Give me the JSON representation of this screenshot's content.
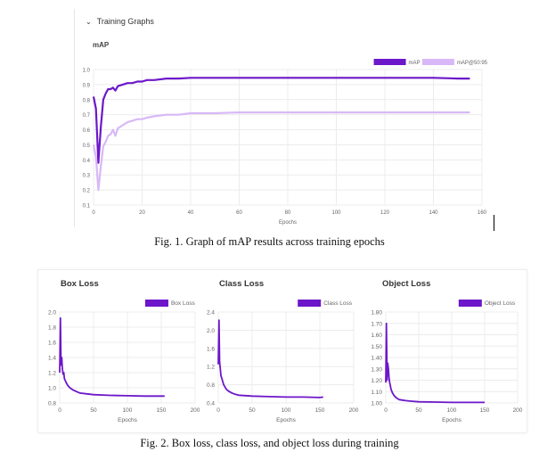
{
  "top": {
    "section_label": "Training Graphs",
    "chart_title": "mAP"
  },
  "captions": {
    "fig1": "Fig. 1. Graph of mAP results across training epochs",
    "fig2": "Fig. 2. Box loss, class loss, and object loss during training"
  },
  "colors": {
    "dark": "#6c17c9",
    "light": "#d8b8f6",
    "grid": "#ececec",
    "axis_text": "#666666"
  },
  "chart_data": [
    {
      "id": "map",
      "type": "line",
      "title": "mAP",
      "xlabel": "Epochs",
      "ylabel": "",
      "xlim": [
        0,
        160
      ],
      "ylim": [
        0.1,
        1.0
      ],
      "xticks": [
        0,
        20,
        40,
        60,
        80,
        100,
        120,
        140,
        160
      ],
      "yticks": [
        0.1,
        0.2,
        0.3,
        0.4,
        0.5,
        0.6,
        0.7,
        0.8,
        0.9,
        1.0
      ],
      "ytick_labels": [
        "0.1",
        "0.2",
        "0.3",
        "0.4",
        "0.5",
        "0.6",
        "0.7",
        "0.8",
        "0.9",
        "1.0"
      ],
      "legend_position": "top-right",
      "series": [
        {
          "name": "mAP",
          "color": "#6c17c9",
          "x": [
            0,
            1,
            2,
            3,
            4,
            5,
            6,
            7,
            8,
            9,
            10,
            12,
            14,
            16,
            18,
            20,
            22,
            25,
            30,
            35,
            40,
            50,
            60,
            80,
            100,
            120,
            140,
            150,
            155
          ],
          "y": [
            0.82,
            0.74,
            0.38,
            0.62,
            0.8,
            0.84,
            0.87,
            0.87,
            0.88,
            0.86,
            0.89,
            0.9,
            0.91,
            0.91,
            0.92,
            0.92,
            0.93,
            0.93,
            0.94,
            0.94,
            0.945,
            0.945,
            0.945,
            0.945,
            0.945,
            0.945,
            0.945,
            0.94,
            0.94
          ]
        },
        {
          "name": "mAP@50:95",
          "color": "#d8b8f6",
          "x": [
            0,
            1,
            2,
            3,
            4,
            5,
            6,
            7,
            8,
            9,
            10,
            12,
            14,
            16,
            18,
            20,
            22,
            25,
            30,
            35,
            40,
            50,
            60,
            80,
            100,
            120,
            140,
            150,
            155
          ],
          "y": [
            0.5,
            0.42,
            0.2,
            0.36,
            0.49,
            0.52,
            0.56,
            0.57,
            0.6,
            0.56,
            0.61,
            0.63,
            0.65,
            0.66,
            0.67,
            0.67,
            0.68,
            0.69,
            0.7,
            0.7,
            0.71,
            0.71,
            0.715,
            0.715,
            0.715,
            0.715,
            0.715,
            0.715,
            0.715
          ]
        }
      ]
    },
    {
      "id": "box",
      "type": "line",
      "title": "Box Loss",
      "xlabel": "Epochs",
      "ylabel": "",
      "xlim": [
        0,
        200
      ],
      "ylim": [
        0.8,
        2.0
      ],
      "xticks": [
        0,
        50,
        100,
        150,
        200
      ],
      "yticks": [
        0.8,
        1.0,
        1.2,
        1.4,
        1.6,
        1.8,
        2.0
      ],
      "ytick_labels": [
        "0.8",
        "1.0",
        "1.2",
        "1.4",
        "1.6",
        "1.8",
        "2.0"
      ],
      "legend_position": "top-right",
      "series": [
        {
          "name": "Box Loss",
          "color": "#6c17c9",
          "x": [
            0,
            1,
            2,
            3,
            4,
            5,
            6,
            7,
            8,
            10,
            12,
            15,
            20,
            25,
            30,
            40,
            50,
            75,
            100,
            125,
            150,
            155
          ],
          "y": [
            1.2,
            1.92,
            1.3,
            1.4,
            1.25,
            1.18,
            1.2,
            1.12,
            1.1,
            1.06,
            1.03,
            1.0,
            0.97,
            0.95,
            0.93,
            0.92,
            0.91,
            0.9,
            0.895,
            0.89,
            0.89,
            0.89
          ]
        }
      ]
    },
    {
      "id": "class",
      "type": "line",
      "title": "Class Loss",
      "xlabel": "Epochs",
      "ylabel": "",
      "xlim": [
        0,
        200
      ],
      "ylim": [
        0.4,
        2.4
      ],
      "xticks": [
        0,
        50,
        100,
        150,
        200
      ],
      "yticks": [
        0.4,
        0.8,
        1.2,
        1.6,
        2.0,
        2.4
      ],
      "ytick_labels": [
        "0.4",
        "0.8",
        "1.2",
        "1.6",
        "2.0",
        "2.4"
      ],
      "legend_position": "top-right",
      "series": [
        {
          "name": "Class Loss",
          "color": "#6c17c9",
          "x": [
            0,
            1,
            2,
            3,
            4,
            5,
            6,
            7,
            8,
            10,
            12,
            15,
            20,
            25,
            30,
            40,
            50,
            75,
            100,
            125,
            150,
            155
          ],
          "y": [
            1.25,
            2.22,
            1.3,
            1.15,
            1.0,
            0.95,
            0.9,
            0.85,
            0.8,
            0.75,
            0.7,
            0.66,
            0.62,
            0.59,
            0.57,
            0.56,
            0.55,
            0.54,
            0.53,
            0.53,
            0.52,
            0.53
          ]
        }
      ]
    },
    {
      "id": "object",
      "type": "line",
      "title": "Object Loss",
      "xlabel": "Epochs",
      "ylabel": "",
      "xlim": [
        0,
        200
      ],
      "ylim": [
        1.0,
        1.8
      ],
      "xticks": [
        0,
        50,
        100,
        150,
        200
      ],
      "yticks": [
        1.0,
        1.1,
        1.2,
        1.3,
        1.4,
        1.5,
        1.6,
        1.7,
        1.8
      ],
      "ytick_labels": [
        "1.00",
        "1.10",
        "1.20",
        "1.30",
        "1.40",
        "1.50",
        "1.60",
        "1.70",
        "1.80"
      ],
      "legend_position": "top-right",
      "series": [
        {
          "name": "Object Loss",
          "color": "#6c17c9",
          "x": [
            0,
            1,
            2,
            3,
            4,
            5,
            6,
            7,
            8,
            10,
            12,
            15,
            20,
            25,
            30,
            40,
            50,
            75,
            100,
            125,
            150
          ],
          "y": [
            1.18,
            1.7,
            1.2,
            1.35,
            1.3,
            1.22,
            1.18,
            1.15,
            1.12,
            1.09,
            1.07,
            1.05,
            1.03,
            1.025,
            1.02,
            1.015,
            1.01,
            1.008,
            1.005,
            1.005,
            1.005
          ]
        }
      ]
    }
  ]
}
